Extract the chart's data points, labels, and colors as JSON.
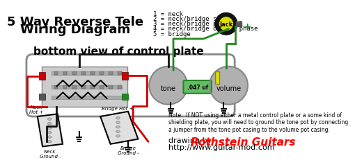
{
  "title_line1": "5 Way Reverse Tele",
  "title_line2": "Wiring Diagram",
  "subtitle": "bottom view of control plate",
  "legend_lines": [
    "1 = neck",
    "2 = neck/bridge series",
    "3 = neck/bridge parallel",
    "4 = neck/bridge out of phase",
    "5 = bridge"
  ],
  "note_text": "Note:  If NOT using either a metal control plate or a some kind of\nshielding plate, you will need to ground the tone pot by connecting\na jumper from the tone pot casing to the volume pot casing.",
  "credit_line1": "drawing by ",
  "credit_brand": "Rothstein Guitars",
  "credit_line2": "http://www.guitar-mod.com",
  "bg_color": "#ffffff",
  "plate_fill": "#d8d8d8",
  "plate_edge": "#888888",
  "pot_fill": "#b0b0b0",
  "pot_edge": "#888888",
  "cap_fill": "#66bb66",
  "cap_edge": "#228822",
  "jack_fill": "#111111",
  "jack_label_fill": "#dddd00",
  "jack_label_color": "#000000",
  "switch_fill": "#cccccc",
  "red_sq": "#cc0000",
  "green_sq": "#228822",
  "gray_sq": "#555555",
  "wire_black": "#111111",
  "wire_red": "#cc0000",
  "wire_green": "#228822",
  "title_fontsize": 13,
  "subtitle_fontsize": 11,
  "body_fontsize": 6.5,
  "note_fontsize": 5.5,
  "credit_fontsize": 8,
  "brand_fontsize": 11
}
